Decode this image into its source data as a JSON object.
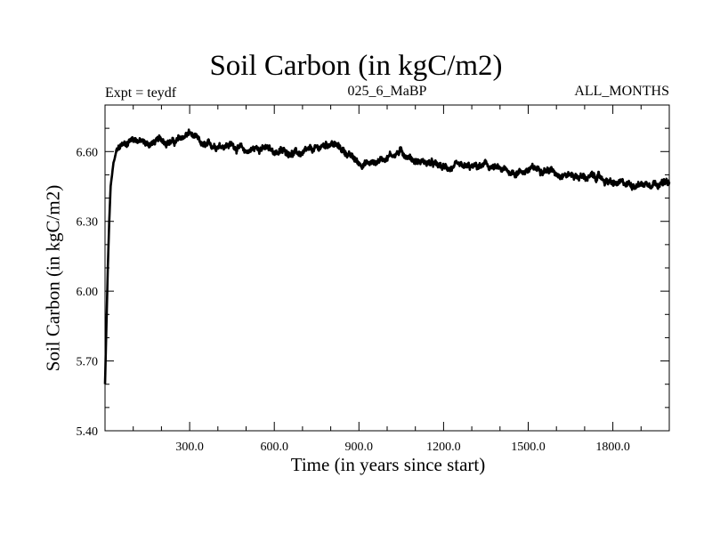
{
  "chart_data": {
    "type": "line",
    "title": "Soil Carbon (in kgC/m2)",
    "subtitle_left": "Expt = teydf",
    "subtitle_center": "025_6_MaBP",
    "subtitle_right": "ALL_MONTHS",
    "xlabel": "Time (in years since start)",
    "ylabel": "Soil Carbon (in kgC/m2)",
    "xlim": [
      0,
      2000
    ],
    "ylim": [
      5.4,
      6.8
    ],
    "x_ticks": [
      "300.0",
      "600.0",
      "900.0",
      "1200.0",
      "1500.0",
      "1800.0"
    ],
    "x_tick_values": [
      300,
      600,
      900,
      1200,
      1500,
      1800
    ],
    "y_ticks": [
      "5.40",
      "5.70",
      "6.00",
      "6.30",
      "6.60"
    ],
    "y_tick_values": [
      5.4,
      5.7,
      6.0,
      6.3,
      6.6
    ],
    "grid": false,
    "line_color": "#000000",
    "series": [
      {
        "x": [
          0,
          5,
          10,
          15,
          20,
          30,
          40,
          60,
          80,
          100,
          150,
          200,
          250,
          300,
          350,
          400,
          450,
          500,
          550,
          600,
          650,
          700,
          750,
          800,
          850,
          900,
          950,
          1000,
          1050,
          1100,
          1150,
          1200,
          1250,
          1300,
          1350,
          1400,
          1450,
          1500,
          1550,
          1600,
          1650,
          1700,
          1750,
          1800,
          1850,
          1900,
          1950,
          2000
        ],
        "values": [
          5.6,
          5.85,
          6.1,
          6.3,
          6.45,
          6.55,
          6.6,
          6.63,
          6.64,
          6.66,
          6.63,
          6.65,
          6.64,
          6.68,
          6.62,
          6.63,
          6.63,
          6.6,
          6.62,
          6.6,
          6.6,
          6.59,
          6.61,
          6.64,
          6.6,
          6.55,
          6.55,
          6.58,
          6.6,
          6.56,
          6.55,
          6.53,
          6.53,
          6.53,
          6.54,
          6.52,
          6.51,
          6.52,
          6.53,
          6.51,
          6.5,
          6.49,
          6.49,
          6.46,
          6.46,
          6.46,
          6.47,
          6.46
        ]
      }
    ]
  }
}
